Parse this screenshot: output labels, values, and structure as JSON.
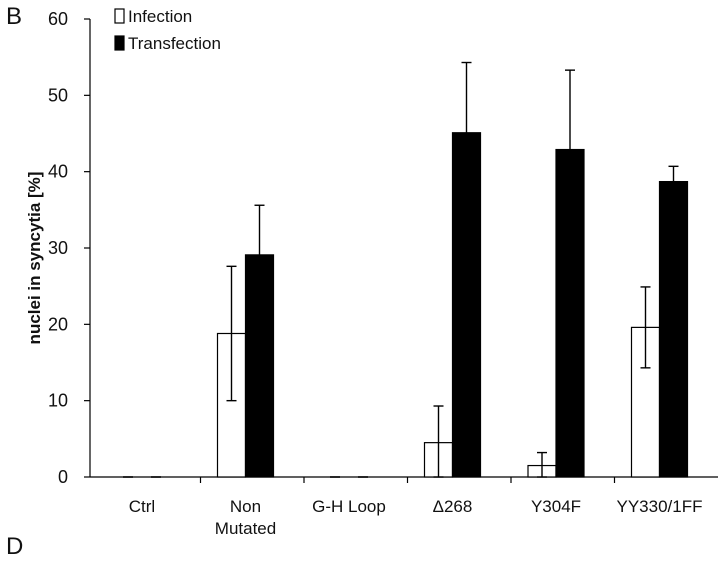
{
  "panels": {
    "top_label": "B",
    "bottom_label": "D"
  },
  "chart_data": {
    "type": "bar",
    "ylabel": "nuclei in syncytia [%]",
    "ylim": [
      0,
      60
    ],
    "yticks": [
      0,
      10,
      20,
      30,
      40,
      50,
      60
    ],
    "categories": [
      [
        "Ctrl"
      ],
      [
        "Non",
        "Mutated"
      ],
      [
        "G-H Loop"
      ],
      [
        "Δ268"
      ],
      [
        "Y304F"
      ],
      [
        "YY330/1FF"
      ]
    ],
    "series": [
      {
        "name": "Infection",
        "color": "#ffffff",
        "values": [
          0,
          18.8,
          0,
          4.5,
          1.5,
          19.6
        ],
        "errors": [
          0,
          8.8,
          0,
          4.8,
          1.7,
          5.3
        ]
      },
      {
        "name": "Transfection",
        "color": "#000000",
        "values": [
          0,
          29.1,
          0,
          45.1,
          42.9,
          38.7
        ],
        "errors": [
          0,
          6.5,
          0,
          9.2,
          10.4,
          2.0
        ]
      }
    ],
    "legend_position": "top-left",
    "grid": false
  }
}
